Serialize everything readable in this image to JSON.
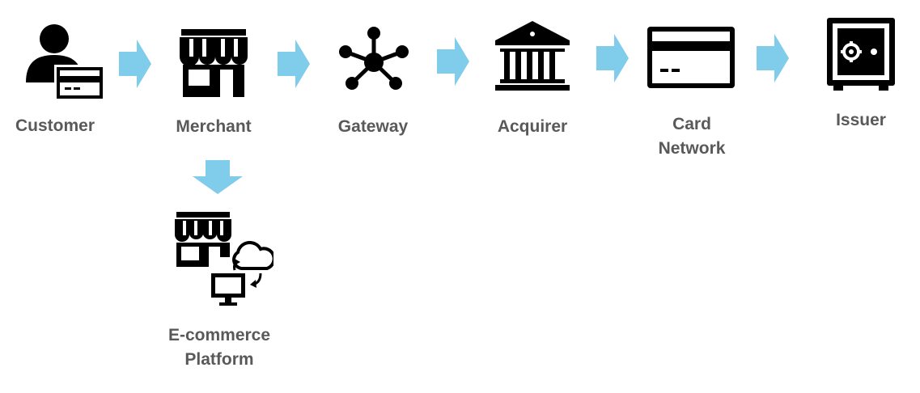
{
  "colors": {
    "icon": "#000000",
    "arrow": "#7FCCEB",
    "label": "#595959"
  },
  "nodes": [
    {
      "id": "customer",
      "icon": "person-with-card-icon",
      "label": [
        "Customer"
      ]
    },
    {
      "id": "merchant",
      "icon": "storefront-icon",
      "label": [
        "Merchant"
      ]
    },
    {
      "id": "gateway",
      "icon": "network-hub-icon",
      "label": [
        "Gateway"
      ]
    },
    {
      "id": "acquirer",
      "icon": "bank-icon",
      "label": [
        "Acquirer"
      ]
    },
    {
      "id": "card-network",
      "icon": "credit-card-icon",
      "label": [
        "Card",
        "Network"
      ]
    },
    {
      "id": "issuer",
      "icon": "safe-vault-icon",
      "label": [
        "Issuer"
      ]
    },
    {
      "id": "ecommerce-platform",
      "icon": "store-cloud-computer-icon",
      "label": [
        "E-commerce",
        "Platform"
      ]
    }
  ]
}
